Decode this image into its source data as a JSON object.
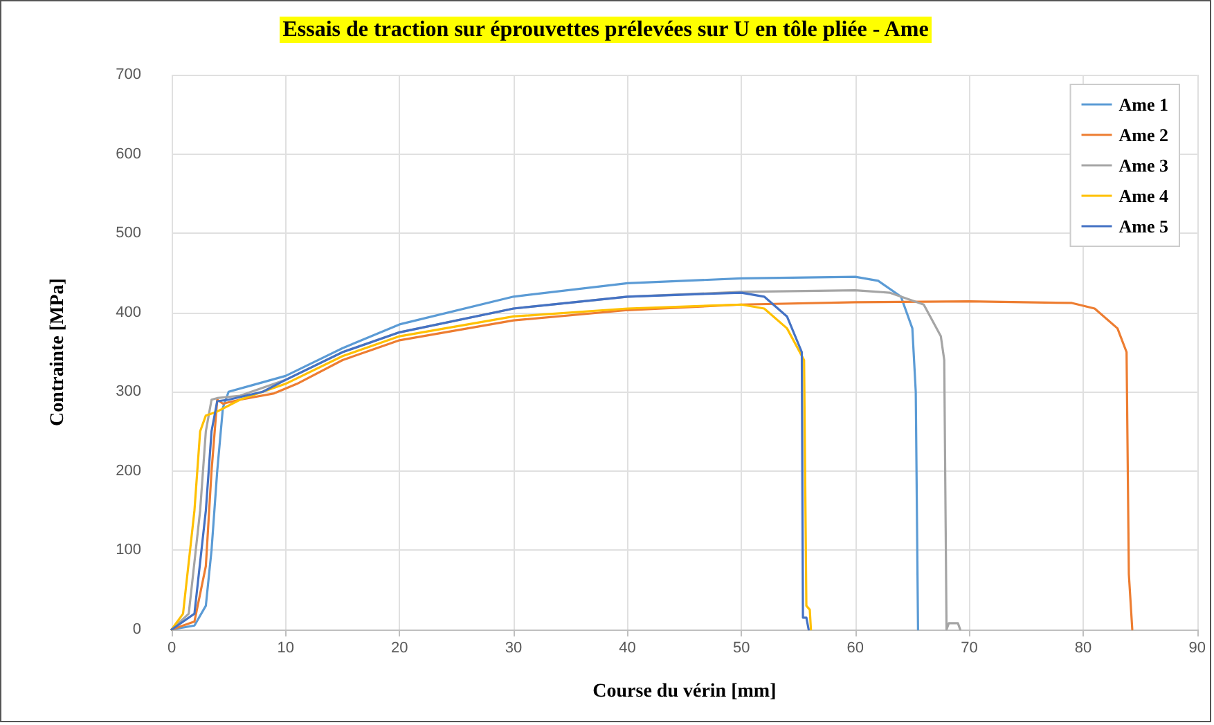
{
  "chart_data": {
    "type": "line",
    "title": "Essais de traction sur éprouvettes prélevées sur U en tôle pliée - Ame",
    "xlabel": "Course du vérin [mm]",
    "ylabel": "Contrainte [MPa]",
    "xlim": [
      0,
      90
    ],
    "xticks": [
      0,
      10,
      20,
      30,
      40,
      50,
      60,
      70,
      80,
      90
    ],
    "ylim": [
      0,
      700
    ],
    "yticks": [
      0,
      100,
      200,
      300,
      400,
      500,
      600,
      700
    ],
    "grid": true,
    "legend": "top right",
    "marker": "none",
    "line_style": "solid",
    "series": [
      {
        "name": "Ame 1",
        "color": "#5b9bd5",
        "x": [
          0,
          2,
          3,
          3.5,
          4,
          4.5,
          5,
          7,
          10,
          15,
          20,
          30,
          40,
          50,
          60,
          62,
          64,
          65,
          65.3,
          65.5
        ],
        "values": [
          0,
          5,
          30,
          100,
          200,
          280,
          300,
          308,
          320,
          355,
          385,
          420,
          437,
          443,
          445,
          440,
          420,
          380,
          300,
          0
        ]
      },
      {
        "name": "Ame 2",
        "color": "#ed7d31",
        "x": [
          0,
          2,
          3,
          3.5,
          4,
          4.5,
          6,
          9,
          11,
          15,
          20,
          30,
          40,
          50,
          60,
          70,
          79,
          81,
          83,
          83.8,
          84,
          84.3
        ],
        "values": [
          0,
          10,
          80,
          200,
          290,
          285,
          290,
          298,
          310,
          340,
          365,
          390,
          403,
          410,
          413,
          414,
          412,
          405,
          380,
          350,
          70,
          0
        ]
      },
      {
        "name": "Ame 3",
        "color": "#a5a5a5",
        "x": [
          0,
          1.5,
          2.5,
          3,
          3.5,
          4,
          6,
          10,
          15,
          20,
          30,
          40,
          50,
          60,
          63,
          66,
          67.5,
          67.8,
          68,
          68.2,
          69,
          69.2
        ],
        "values": [
          0,
          20,
          150,
          250,
          290,
          292,
          295,
          315,
          350,
          375,
          405,
          420,
          426,
          428,
          425,
          410,
          370,
          340,
          0,
          8,
          8,
          0
        ]
      },
      {
        "name": "Ame 4",
        "color": "#ffc000",
        "x": [
          0,
          1,
          2,
          2.5,
          3,
          4,
          6,
          10,
          15,
          20,
          30,
          40,
          50,
          52,
          54,
          55.5,
          55.7,
          56,
          56.1
        ],
        "values": [
          0,
          20,
          150,
          250,
          270,
          275,
          290,
          310,
          345,
          370,
          395,
          405,
          410,
          405,
          380,
          340,
          30,
          25,
          0
        ]
      },
      {
        "name": "Ame 5",
        "color": "#4472c4",
        "x": [
          0,
          2,
          3,
          3.5,
          4,
          5,
          8,
          10,
          15,
          20,
          30,
          40,
          50,
          52,
          54,
          55.3,
          55.4,
          55.7,
          55.9
        ],
        "values": [
          0,
          20,
          150,
          250,
          288,
          290,
          300,
          315,
          350,
          375,
          405,
          420,
          425,
          420,
          395,
          350,
          15,
          15,
          0
        ]
      }
    ]
  }
}
